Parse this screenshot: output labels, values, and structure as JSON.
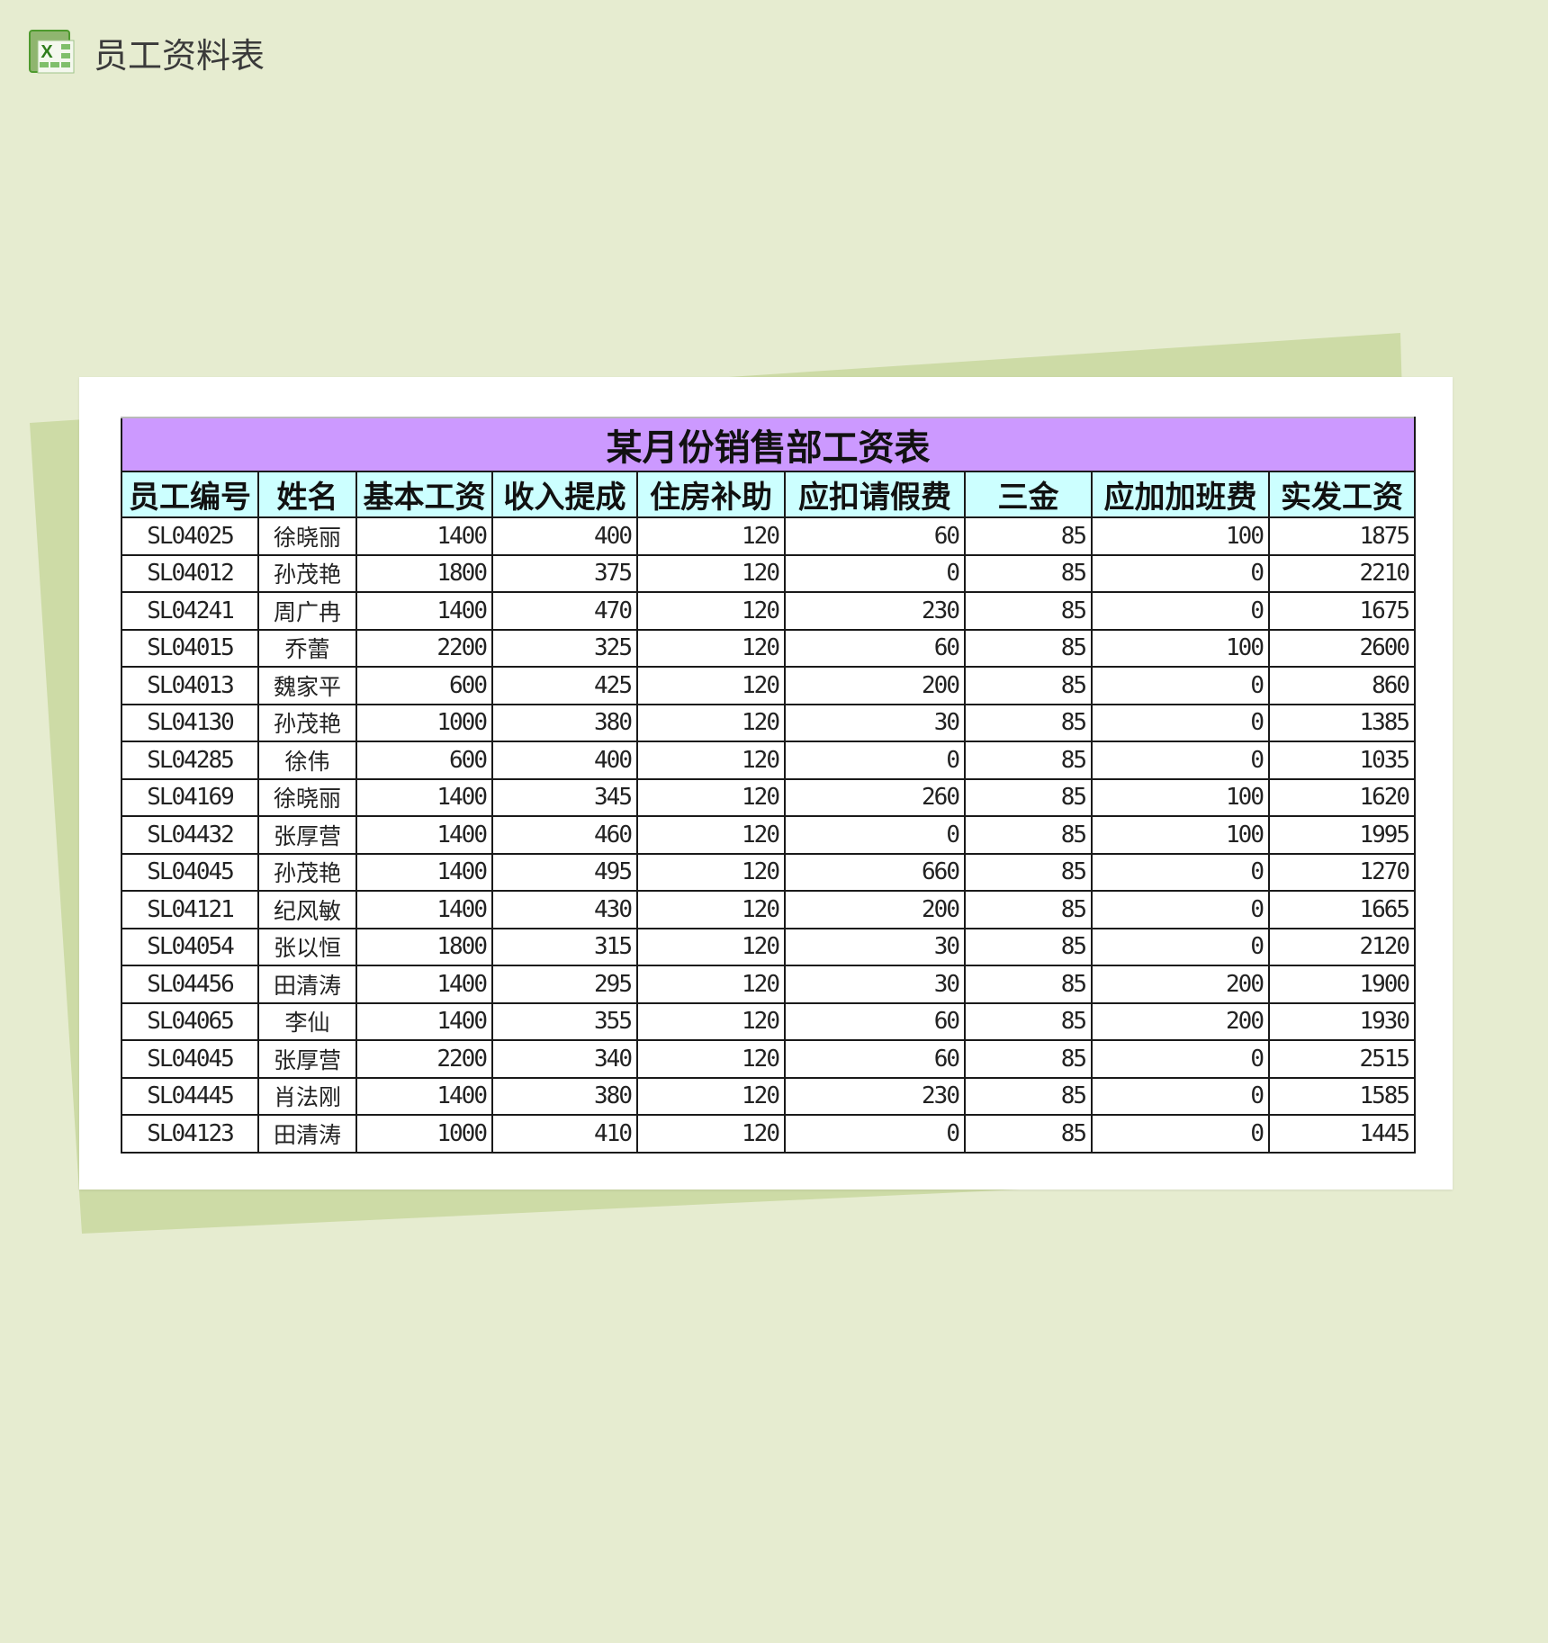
{
  "app": {
    "title": "员工资料表",
    "icon": "excel-icon"
  },
  "colors": {
    "background": "#e6ecd0",
    "sheet_shadow": "#cddba6",
    "title_band": "#cc99ff",
    "header_band": "#ccffff"
  },
  "table": {
    "title": "某月份销售部工资表",
    "headers": [
      "员工编号",
      "姓名",
      "基本工资",
      "收入提成",
      "住房补助",
      "应扣请假费",
      "三金",
      "应加加班费",
      "实发工资"
    ],
    "rows": [
      [
        "SL04025",
        "徐晓丽",
        "1400",
        "400",
        "120",
        "60",
        "85",
        "100",
        "1875"
      ],
      [
        "SL04012",
        "孙茂艳",
        "1800",
        "375",
        "120",
        "0",
        "85",
        "0",
        "2210"
      ],
      [
        "SL04241",
        "周广冉",
        "1400",
        "470",
        "120",
        "230",
        "85",
        "0",
        "1675"
      ],
      [
        "SL04015",
        "乔蕾",
        "2200",
        "325",
        "120",
        "60",
        "85",
        "100",
        "2600"
      ],
      [
        "SL04013",
        "魏家平",
        "600",
        "425",
        "120",
        "200",
        "85",
        "0",
        "860"
      ],
      [
        "SL04130",
        "孙茂艳",
        "1000",
        "380",
        "120",
        "30",
        "85",
        "0",
        "1385"
      ],
      [
        "SL04285",
        "徐伟",
        "600",
        "400",
        "120",
        "0",
        "85",
        "0",
        "1035"
      ],
      [
        "SL04169",
        "徐晓丽",
        "1400",
        "345",
        "120",
        "260",
        "85",
        "100",
        "1620"
      ],
      [
        "SL04432",
        "张厚营",
        "1400",
        "460",
        "120",
        "0",
        "85",
        "100",
        "1995"
      ],
      [
        "SL04045",
        "孙茂艳",
        "1400",
        "495",
        "120",
        "660",
        "85",
        "0",
        "1270"
      ],
      [
        "SL04121",
        "纪风敏",
        "1400",
        "430",
        "120",
        "200",
        "85",
        "0",
        "1665"
      ],
      [
        "SL04054",
        "张以恒",
        "1800",
        "315",
        "120",
        "30",
        "85",
        "0",
        "2120"
      ],
      [
        "SL04456",
        "田清涛",
        "1400",
        "295",
        "120",
        "30",
        "85",
        "200",
        "1900"
      ],
      [
        "SL04065",
        "李仙",
        "1400",
        "355",
        "120",
        "60",
        "85",
        "200",
        "1930"
      ],
      [
        "SL04045",
        "张厚营",
        "2200",
        "340",
        "120",
        "60",
        "85",
        "0",
        "2515"
      ],
      [
        "SL04445",
        "肖法刚",
        "1400",
        "380",
        "120",
        "230",
        "85",
        "0",
        "1585"
      ],
      [
        "SL04123",
        "田清涛",
        "1000",
        "410",
        "120",
        "0",
        "85",
        "0",
        "1445"
      ]
    ]
  }
}
